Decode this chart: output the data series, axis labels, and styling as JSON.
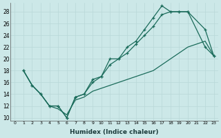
{
  "xlabel": "Humidex (Indice chaleur)",
  "bg_color": "#cce8e8",
  "grid_color": "#b0d0d0",
  "line_color": "#1a6b5a",
  "xlim": [
    -0.5,
    23.5
  ],
  "ylim": [
    9.5,
    29.5
  ],
  "xticks": [
    0,
    1,
    2,
    3,
    4,
    5,
    6,
    7,
    8,
    9,
    10,
    11,
    12,
    13,
    14,
    15,
    16,
    17,
    18,
    19,
    20,
    21,
    22,
    23
  ],
  "yticks": [
    10,
    12,
    14,
    16,
    18,
    20,
    22,
    24,
    26,
    28
  ],
  "line1_x": [
    1,
    2,
    3,
    4,
    5,
    6,
    7,
    8,
    9,
    10,
    11,
    12,
    13,
    14,
    15,
    16,
    17,
    18,
    19,
    20,
    22,
    23
  ],
  "line1_y": [
    18,
    15.5,
    14,
    12,
    12,
    10,
    13.5,
    14,
    16.5,
    17,
    20,
    20,
    22,
    23,
    25,
    27,
    29,
    28,
    28,
    28,
    25,
    20.5
  ],
  "line2_x": [
    1,
    2,
    3,
    4,
    5,
    6,
    7,
    8,
    9,
    10,
    11,
    12,
    13,
    14,
    15,
    16,
    17,
    18,
    19,
    20,
    22,
    23
  ],
  "line2_y": [
    18,
    15.5,
    14,
    12,
    12,
    10,
    13.5,
    14,
    16,
    17,
    19,
    20,
    21,
    22.5,
    24,
    25.5,
    27.5,
    28,
    28,
    28,
    22,
    20.5
  ],
  "line3_x": [
    1,
    2,
    3,
    4,
    5,
    6,
    7,
    8,
    9,
    10,
    11,
    12,
    13,
    14,
    15,
    16,
    17,
    18,
    19,
    20,
    22,
    23
  ],
  "line3_y": [
    18,
    15.5,
    14,
    12,
    11.5,
    10.5,
    13,
    13.5,
    14.5,
    15,
    15.5,
    16,
    16.5,
    17,
    17.5,
    18,
    19,
    20,
    21,
    22,
    23,
    20.5
  ]
}
